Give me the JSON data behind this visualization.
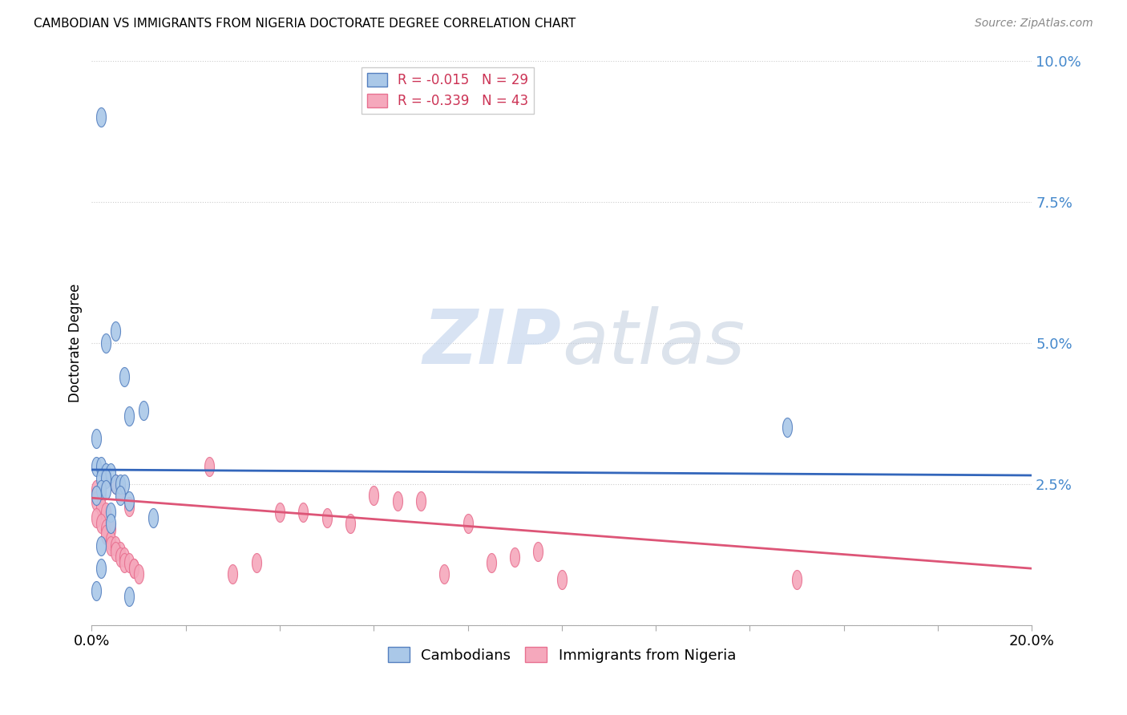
{
  "title": "CAMBODIAN VS IMMIGRANTS FROM NIGERIA DOCTORATE DEGREE CORRELATION CHART",
  "source": "Source: ZipAtlas.com",
  "ylabel": "Doctorate Degree",
  "xlim": [
    0.0,
    0.2
  ],
  "ylim": [
    0.0,
    0.1
  ],
  "yticks": [
    0.0,
    0.025,
    0.05,
    0.075,
    0.1
  ],
  "ytick_labels": [
    "",
    "2.5%",
    "5.0%",
    "7.5%",
    "10.0%"
  ],
  "xticks": [
    0.0,
    0.02,
    0.04,
    0.06,
    0.08,
    0.1,
    0.12,
    0.14,
    0.16,
    0.18,
    0.2
  ],
  "legend_r1_left": "R = ",
  "legend_r1_val": "-0.015",
  "legend_r1_right": "   N = 29",
  "legend_r2_left": "R = ",
  "legend_r2_val": "-0.339",
  "legend_r2_right": "   N = 43",
  "cambodian_color": "#aac8e8",
  "nigeria_color": "#f5a8bc",
  "cambodian_edge_color": "#5580c0",
  "nigeria_edge_color": "#e87090",
  "cambodian_line_color": "#3366bb",
  "nigeria_line_color": "#dd5577",
  "background_color": "#ffffff",
  "watermark_zip": "ZIP",
  "watermark_atlas": "atlas",
  "cambodian_x": [
    0.002,
    0.005,
    0.003,
    0.007,
    0.008,
    0.011,
    0.001,
    0.001,
    0.002,
    0.003,
    0.004,
    0.002,
    0.003,
    0.005,
    0.006,
    0.007,
    0.002,
    0.003,
    0.001,
    0.006,
    0.008,
    0.004,
    0.013,
    0.004,
    0.002,
    0.002,
    0.001,
    0.008,
    0.148
  ],
  "cambodian_y": [
    0.09,
    0.052,
    0.05,
    0.044,
    0.037,
    0.038,
    0.033,
    0.028,
    0.028,
    0.027,
    0.027,
    0.026,
    0.026,
    0.025,
    0.025,
    0.025,
    0.024,
    0.024,
    0.023,
    0.023,
    0.022,
    0.02,
    0.019,
    0.018,
    0.014,
    0.01,
    0.006,
    0.005,
    0.035
  ],
  "nigeria_x": [
    0.001,
    0.002,
    0.001,
    0.003,
    0.002,
    0.003,
    0.001,
    0.002,
    0.003,
    0.004,
    0.003,
    0.004,
    0.005,
    0.004,
    0.005,
    0.006,
    0.005,
    0.006,
    0.006,
    0.007,
    0.007,
    0.008,
    0.008,
    0.009,
    0.009,
    0.01,
    0.06,
    0.065,
    0.045,
    0.05,
    0.055,
    0.07,
    0.075,
    0.08,
    0.085,
    0.09,
    0.095,
    0.1,
    0.035,
    0.04,
    0.03,
    0.025,
    0.15
  ],
  "nigeria_y": [
    0.024,
    0.023,
    0.022,
    0.026,
    0.021,
    0.02,
    0.019,
    0.018,
    0.017,
    0.017,
    0.016,
    0.015,
    0.025,
    0.014,
    0.014,
    0.013,
    0.013,
    0.024,
    0.012,
    0.012,
    0.011,
    0.021,
    0.011,
    0.01,
    0.01,
    0.009,
    0.023,
    0.022,
    0.02,
    0.019,
    0.018,
    0.022,
    0.009,
    0.018,
    0.011,
    0.012,
    0.013,
    0.008,
    0.011,
    0.02,
    0.009,
    0.028,
    0.008
  ],
  "cam_line_x": [
    0.0,
    0.2
  ],
  "cam_line_y": [
    0.0275,
    0.0265
  ],
  "nig_line_x": [
    0.0,
    0.2
  ],
  "nig_line_y": [
    0.0225,
    0.01
  ]
}
